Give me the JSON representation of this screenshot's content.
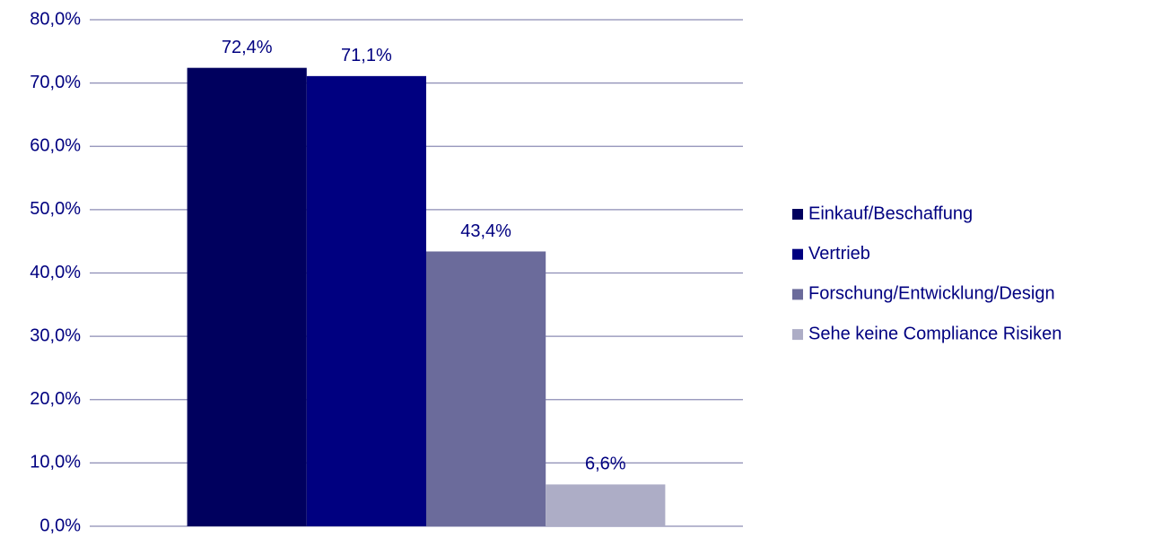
{
  "chart_data": {
    "type": "bar",
    "categories": [
      null
    ],
    "series": [
      {
        "name": "Einkauf/Beschaffung",
        "color": "#00005e",
        "values": [
          72.4
        ],
        "value_labels": [
          "72,4%"
        ]
      },
      {
        "name": "Vertrieb",
        "color": "#000080",
        "values": [
          71.1
        ],
        "value_labels": [
          "71,1%"
        ]
      },
      {
        "name": "Forschung/Entwicklung/Design",
        "color": "#6b6b9b",
        "values": [
          43.4
        ],
        "value_labels": [
          "43,4%"
        ]
      },
      {
        "name": "Sehe keine Compliance Risiken",
        "color": "#adadc6",
        "values": [
          6.6
        ],
        "value_labels": [
          "6,6%"
        ]
      }
    ],
    "ylim": [
      0,
      80
    ],
    "yticks": [
      {
        "value": 0,
        "label": "0,0%"
      },
      {
        "value": 10,
        "label": "10,0%"
      },
      {
        "value": 20,
        "label": "20,0%"
      },
      {
        "value": 30,
        "label": "30,0%"
      },
      {
        "value": 40,
        "label": "40,0%"
      },
      {
        "value": 50,
        "label": "50,0%"
      },
      {
        "value": 60,
        "label": "60,0%"
      },
      {
        "value": 70,
        "label": "70,0%"
      },
      {
        "value": 80,
        "label": "80,0%"
      }
    ],
    "grid": true,
    "legend": "right"
  }
}
